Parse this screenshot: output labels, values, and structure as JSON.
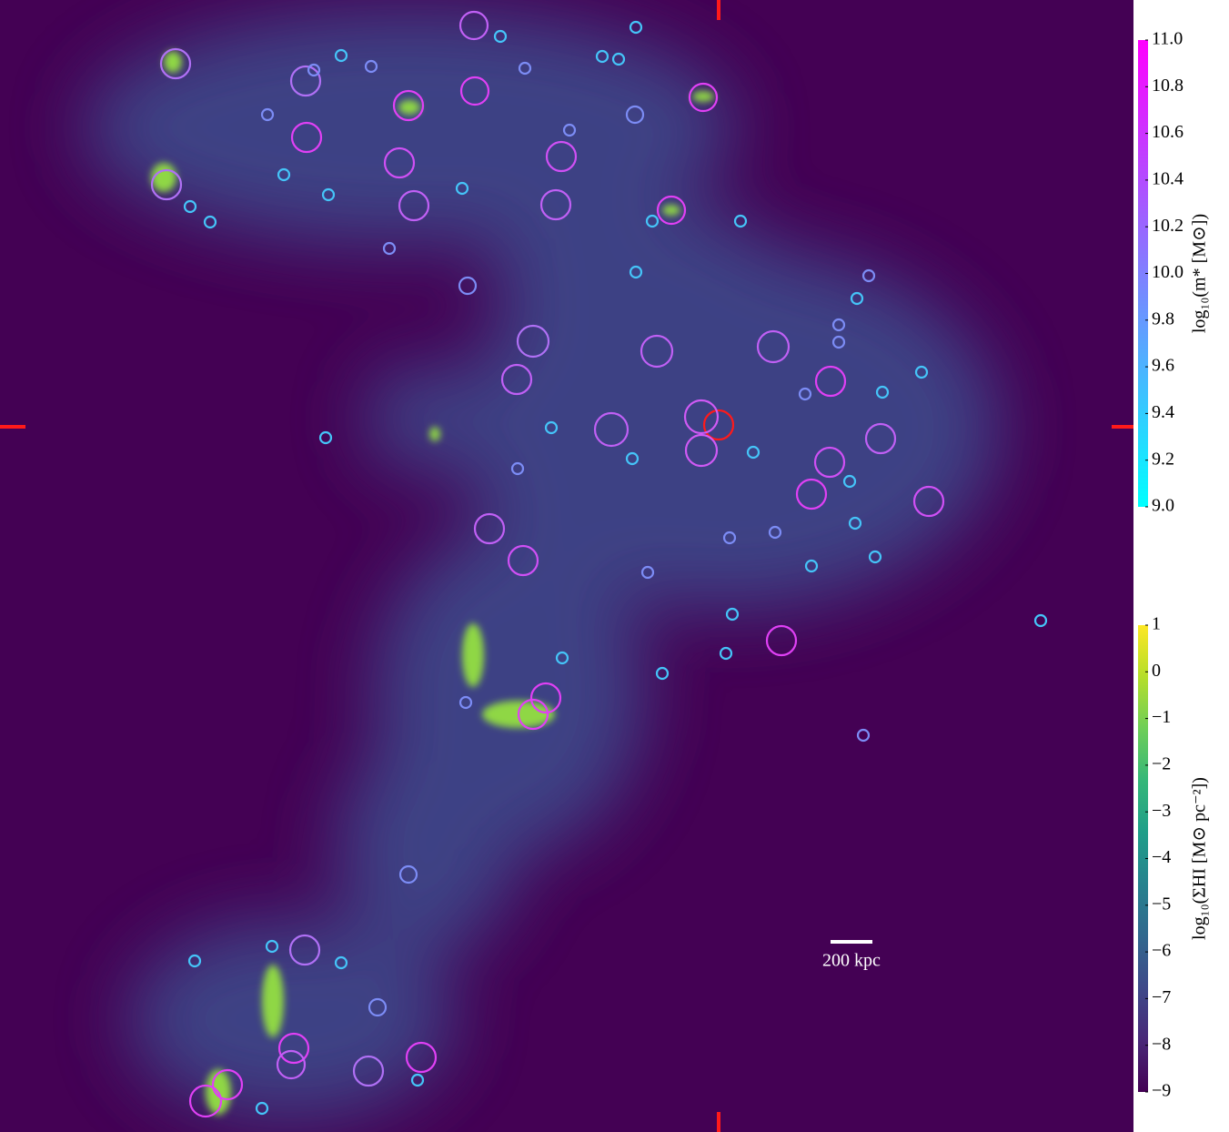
{
  "figure": {
    "scale_bar": {
      "label": "200 kpc"
    },
    "colorbars": [
      {
        "label": "log₁₀(m* [M⊙])",
        "colormap": "cool",
        "lim": [
          9,
          11
        ],
        "ticks": [
          {
            "value": 9,
            "label": "9.0"
          },
          9.2,
          9.4,
          9.6,
          9.8,
          {
            "value": 10,
            "label": "10.0"
          },
          10.2,
          10.4,
          10.6,
          10.8,
          {
            "value": 11,
            "label": "11.0"
          }
        ]
      },
      {
        "label": "log₁₀(ΣHI [M⊙ pc⁻²])",
        "colormap": "viridis",
        "lim": [
          -9,
          1
        ],
        "ticks": [
          {
            "value": -9,
            "label": "−9"
          },
          {
            "value": -8,
            "label": "−8"
          },
          {
            "value": -7,
            "label": "−7"
          },
          {
            "value": -6,
            "label": "−6"
          },
          {
            "value": -5,
            "label": "−5"
          },
          {
            "value": -4,
            "label": "−4"
          },
          {
            "value": -3,
            "label": "−3"
          },
          {
            "value": -2,
            "label": "−2"
          },
          {
            "value": -1,
            "label": "−1"
          },
          0,
          1
        ]
      }
    ]
  }
}
